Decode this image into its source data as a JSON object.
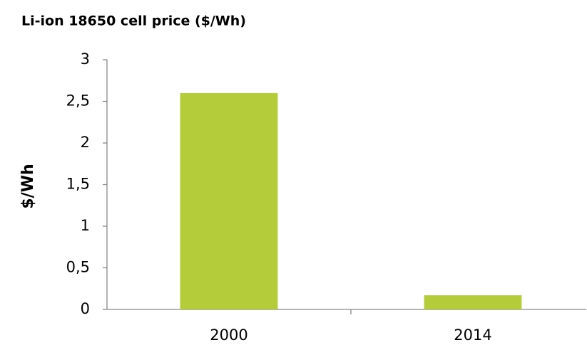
{
  "chart_data": {
    "type": "bar",
    "title": "Li-ion 18650 cell price ($/Wh)",
    "y_label": "$/Wh",
    "categories": [
      "2000",
      "2014"
    ],
    "values": [
      2.6,
      0.17
    ],
    "color": "#b5cc3a",
    "ylim": [
      0,
      3
    ],
    "yticks": [
      0,
      {
        "value": 0.5,
        "label": "0,5"
      },
      1,
      {
        "value": 1.5,
        "label": "1,5"
      },
      2,
      {
        "value": 2.5,
        "label": "2,5"
      },
      3
    ],
    "grid": false
  }
}
